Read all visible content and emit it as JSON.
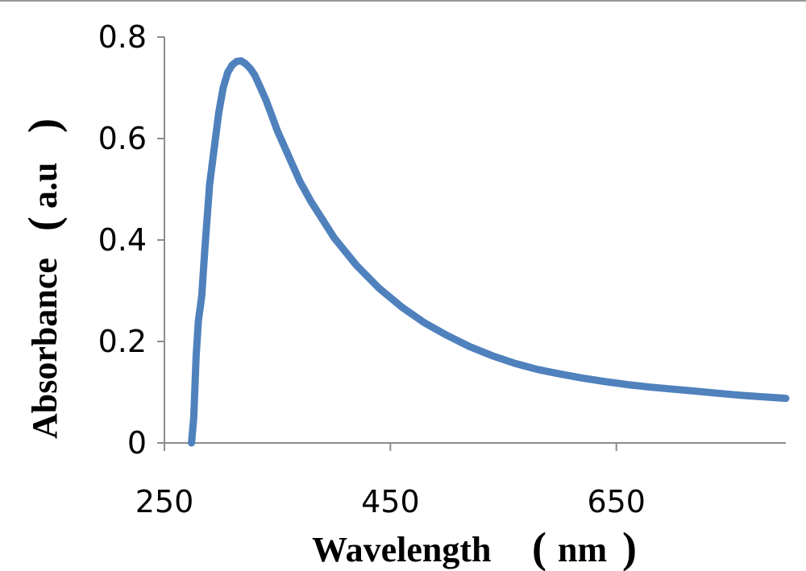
{
  "chart_data": {
    "type": "line",
    "xlabel": "Wavelength",
    "xunit": "nm",
    "ylabel": "Absorbance",
    "yunit": "a.u",
    "xlim": [
      250,
      800
    ],
    "ylim": [
      0,
      0.8
    ],
    "x_ticks": [
      "250",
      "450",
      "650"
    ],
    "y_ticks": [
      "0",
      "0.2",
      "0.4",
      "0.6",
      "0.8"
    ],
    "x_tick_values": [
      250,
      450,
      650
    ],
    "y_tick_values": [
      0,
      0.2,
      0.4,
      0.6,
      0.8
    ],
    "grid": false,
    "legend": "none",
    "series": [
      {
        "color": "#4f81bd",
        "x": [
          274,
          276,
          278,
          280,
          283,
          286,
          290,
          294,
          298,
          302,
          306,
          310,
          314,
          318,
          322,
          326,
          330,
          335,
          340,
          345,
          350,
          360,
          370,
          380,
          390,
          400,
          420,
          440,
          460,
          480,
          500,
          520,
          540,
          560,
          580,
          600,
          620,
          640,
          660,
          680,
          700,
          720,
          740,
          760,
          780,
          800
        ],
        "y": [
          0.0,
          0.05,
          0.17,
          0.24,
          0.29,
          0.39,
          0.51,
          0.58,
          0.65,
          0.7,
          0.73,
          0.745,
          0.752,
          0.753,
          0.747,
          0.738,
          0.725,
          0.7,
          0.675,
          0.645,
          0.615,
          0.565,
          0.515,
          0.475,
          0.44,
          0.405,
          0.35,
          0.305,
          0.268,
          0.237,
          0.212,
          0.19,
          0.172,
          0.157,
          0.145,
          0.136,
          0.128,
          0.121,
          0.115,
          0.11,
          0.106,
          0.102,
          0.098,
          0.094,
          0.091,
          0.088
        ]
      }
    ]
  }
}
